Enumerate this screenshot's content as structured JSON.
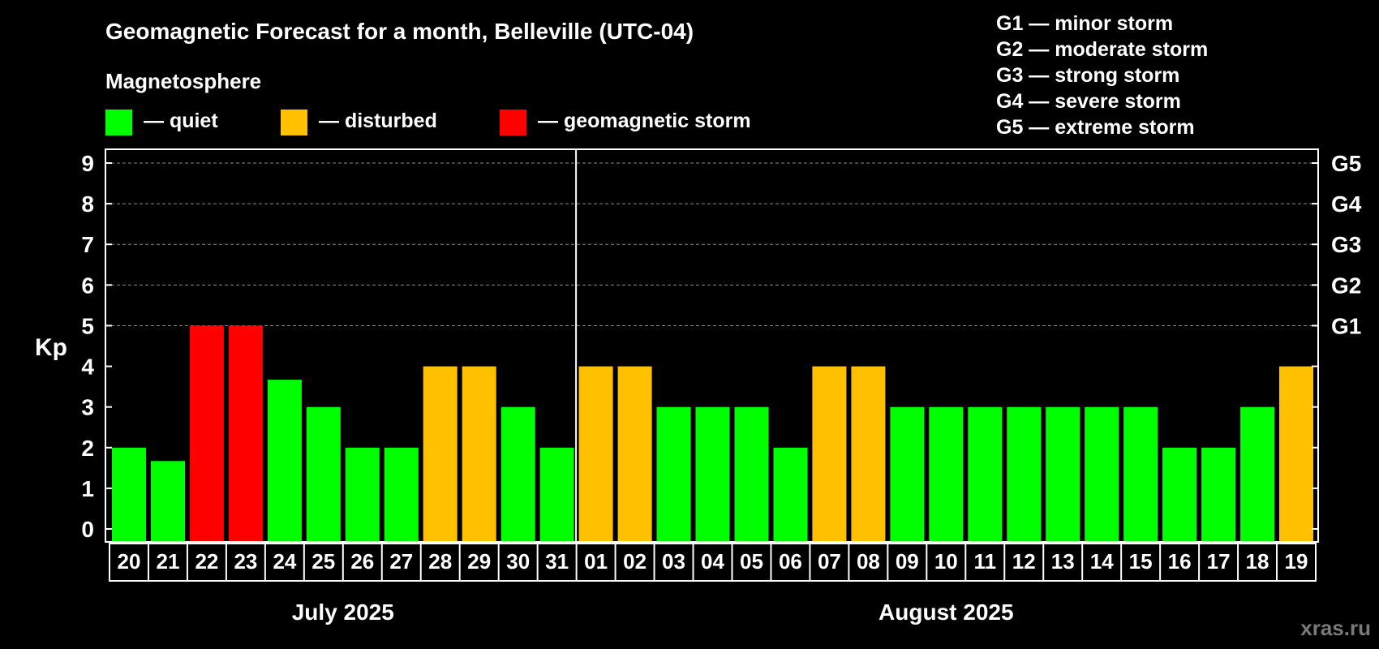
{
  "colors": {
    "background": "#000000",
    "quiet": "#00ff00",
    "disturbed": "#ffc000",
    "storm": "#ff0000",
    "grid": "#8a8a8a",
    "text": "#ffffff",
    "watermark": "#7a7a7a"
  },
  "chart_data": {
    "type": "bar",
    "title": "Geomagnetic Forecast for a month, Belleville (UTC-04)",
    "subtitle": "Magnetosphere",
    "ylabel": "Kp",
    "ylim": [
      0,
      9
    ],
    "yticks": [
      "0",
      "1",
      "2",
      "3",
      "4",
      "5",
      "6",
      "7",
      "8",
      "9"
    ],
    "legend": [
      {
        "key": "quiet",
        "label": "— quiet"
      },
      {
        "key": "disturbed",
        "label": "— disturbed"
      },
      {
        "key": "storm",
        "label": "— geomagnetic storm"
      }
    ],
    "storm_scale": [
      "G1 — minor storm",
      "G2 — moderate storm",
      "G3 — strong storm",
      "G4 — severe storm",
      "G5 — extreme storm"
    ],
    "right_axis": [
      {
        "kp": 5,
        "label": "G1"
      },
      {
        "kp": 6,
        "label": "G2"
      },
      {
        "kp": 7,
        "label": "G3"
      },
      {
        "kp": 8,
        "label": "G4"
      },
      {
        "kp": 9,
        "label": "G5"
      }
    ],
    "categories": [
      "20",
      "21",
      "22",
      "23",
      "24",
      "25",
      "26",
      "27",
      "28",
      "29",
      "30",
      "31",
      "01",
      "02",
      "03",
      "04",
      "05",
      "06",
      "07",
      "08",
      "09",
      "10",
      "11",
      "12",
      "13",
      "14",
      "15",
      "16",
      "17",
      "18",
      "19"
    ],
    "values": [
      2,
      1.67,
      5,
      5,
      3.67,
      3,
      2,
      2,
      4,
      4,
      3,
      2,
      4,
      4,
      3,
      3,
      3,
      2,
      4,
      4,
      3,
      3,
      3,
      3,
      3,
      3,
      3,
      2,
      2,
      3,
      4
    ],
    "levels": [
      "quiet",
      "quiet",
      "storm",
      "storm",
      "quiet",
      "quiet",
      "quiet",
      "quiet",
      "disturbed",
      "disturbed",
      "quiet",
      "quiet",
      "disturbed",
      "disturbed",
      "quiet",
      "quiet",
      "quiet",
      "quiet",
      "disturbed",
      "disturbed",
      "quiet",
      "quiet",
      "quiet",
      "quiet",
      "quiet",
      "quiet",
      "quiet",
      "quiet",
      "quiet",
      "quiet",
      "disturbed"
    ],
    "months": [
      {
        "label": "July 2025",
        "from": 0,
        "to": 11
      },
      {
        "label": "August 2025",
        "from": 12,
        "to": 30
      }
    ]
  },
  "watermark": "xras.ru"
}
